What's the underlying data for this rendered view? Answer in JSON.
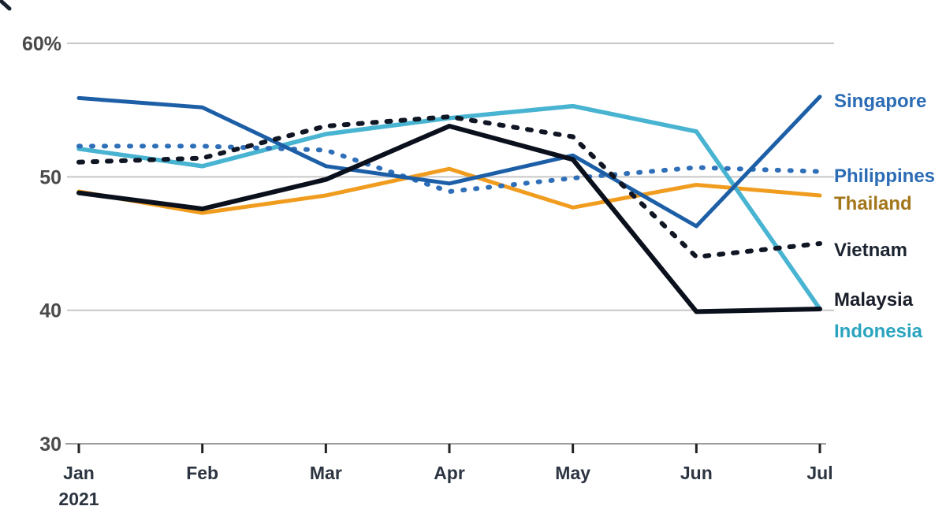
{
  "chart_data": {
    "type": "line",
    "title": "",
    "x_categories": [
      "Jan",
      "Feb",
      "Mar",
      "Apr",
      "May",
      "Jun",
      "Jul"
    ],
    "x_first_sublabel": "2021",
    "y_ticks": [
      {
        "label": "60%",
        "value": 60
      },
      {
        "label": "50",
        "value": 50
      },
      {
        "label": "40",
        "value": 40
      },
      {
        "label": "30",
        "value": 30
      }
    ],
    "ylim": [
      30,
      62
    ],
    "grid": "horizontal",
    "legend_position": "right-of-line-ends",
    "series": [
      {
        "name": "Singapore",
        "style": "solid",
        "color": "#1d5fa7",
        "label_color": "#2b6cb5",
        "values": [
          55.9,
          55.2,
          50.8,
          49.5,
          51.6,
          46.3,
          56.0
        ]
      },
      {
        "name": "Philippines",
        "style": "dashed",
        "color": "#2f6fb8",
        "label_color": "#2b6cb5",
        "values": [
          52.3,
          52.3,
          52.0,
          48.9,
          49.9,
          50.7,
          50.4
        ]
      },
      {
        "name": "Thailand",
        "style": "solid",
        "color": "#f09c1f",
        "label_color": "#a3761b",
        "values": [
          48.9,
          47.3,
          48.6,
          50.6,
          47.7,
          49.4,
          48.6
        ]
      },
      {
        "name": "Vietnam",
        "style": "dashed",
        "color": "#101623",
        "label_color": "#1b2430",
        "values": [
          51.1,
          51.4,
          53.8,
          54.5,
          53.0,
          44.0,
          45.0
        ]
      },
      {
        "name": "Malaysia",
        "style": "solid",
        "color": "#0b101d",
        "label_color": "#191d29",
        "values": [
          48.8,
          47.6,
          49.8,
          53.8,
          51.3,
          39.9,
          40.1
        ]
      },
      {
        "name": "Indonesia",
        "style": "solid",
        "color": "#48b4d2",
        "label_color": "#2ba4bf",
        "values": [
          52.1,
          50.8,
          53.2,
          54.4,
          55.3,
          53.4,
          40.1
        ]
      }
    ]
  },
  "colors": {
    "background": "#ffffff",
    "gridline": "#c7c7c7",
    "axis_line": "#9c9c9c",
    "axis_tick": "#222222",
    "y_label": "#4a4a4a",
    "x_label": "#2b3440",
    "corner_mark": "#1a2230"
  }
}
